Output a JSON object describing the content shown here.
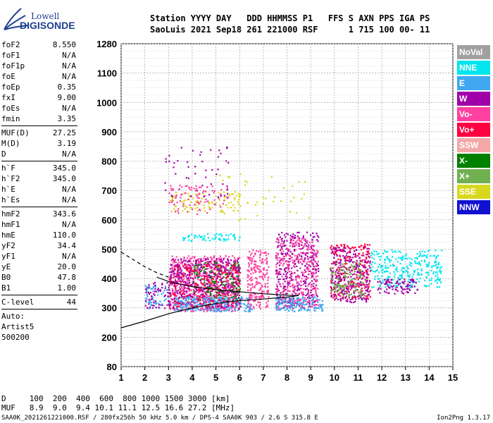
{
  "logo": {
    "line1": "Lowell",
    "line2": "DIGISONDE"
  },
  "header": {
    "line1": "Station YYYY DAY   DDD HHMMSS P1   FFS S AXN PPS IGA PS",
    "line2": "SaoLuis 2021 Sep18 261 221000 RSF      1 715 100 00- 11"
  },
  "params": {
    "group1": [
      {
        "k": "foF2",
        "v": "8.550"
      },
      {
        "k": "foF1",
        "v": "N/A"
      },
      {
        "k": "foF1p",
        "v": "N/A"
      },
      {
        "k": "foE",
        "v": "N/A"
      },
      {
        "k": "foEp",
        "v": "0.35"
      },
      {
        "k": "fxI",
        "v": "9.00"
      },
      {
        "k": "foEs",
        "v": "N/A"
      },
      {
        "k": "fmin",
        "v": "3.35"
      }
    ],
    "group2": [
      {
        "k": "MUF(D)",
        "v": "27.25"
      },
      {
        "k": "M(D)",
        "v": "3.19"
      },
      {
        "k": "D",
        "v": "N/A"
      }
    ],
    "group3": [
      {
        "k": "h`F",
        "v": "345.0"
      },
      {
        "k": "h`F2",
        "v": "345.0"
      },
      {
        "k": "h`E",
        "v": "N/A"
      },
      {
        "k": "h`Es",
        "v": "N/A"
      }
    ],
    "group4": [
      {
        "k": "hmF2",
        "v": "343.6"
      },
      {
        "k": "hmF1",
        "v": "N/A"
      },
      {
        "k": "hmE",
        "v": "110.0"
      },
      {
        "k": "yF2",
        "v": "34.4"
      },
      {
        "k": "yF1",
        "v": "N/A"
      },
      {
        "k": "yE",
        "v": "20.0"
      },
      {
        "k": "B0",
        "v": "47.8"
      },
      {
        "k": "B1",
        "v": "1.00"
      }
    ],
    "group5": [
      {
        "k": "C-level",
        "v": "44"
      }
    ],
    "auto": [
      "Auto:",
      "Artist5",
      "500200"
    ]
  },
  "legend": [
    {
      "label": "NoVal",
      "color": "#a0a0a0"
    },
    {
      "label": "NNE",
      "color": "#00e5ee"
    },
    {
      "label": "E",
      "color": "#40a8f0"
    },
    {
      "label": "W",
      "color": "#a000a8"
    },
    {
      "label": "Vo-",
      "color": "#ff40a0"
    },
    {
      "label": "Vo+",
      "color": "#ff0040"
    },
    {
      "label": "SSW",
      "color": "#f4a8a8"
    },
    {
      "label": "X-",
      "color": "#008000"
    },
    {
      "label": "X+",
      "color": "#70b050"
    },
    {
      "label": "SSE",
      "color": "#d8d820"
    },
    {
      "label": "NNW",
      "color": "#1010d0"
    }
  ],
  "dmuf": {
    "dline": "D     100  200  400  600  800 1000 1500 3000 [km]",
    "mline": "MUF   8.9  9.0  9.4 10.1 11.1 12.5 16.6 27.2 [MHz]"
  },
  "footer": {
    "left": "SAA0K_2021261221000.RSF / 280fx256h 50 kHz 5.0 km / DPS-4 SAA0K 903 / 2.6 S 315.8 E",
    "right": "Ion2Png 1.3.17"
  },
  "chart_data": {
    "type": "scatter",
    "title": "",
    "xlabel": "",
    "ylabel": "",
    "xlim": [
      1,
      15
    ],
    "ylim_ticks": [
      80,
      200,
      300,
      400,
      500,
      600,
      700,
      800,
      900,
      1000,
      1100,
      1280
    ],
    "x_ticks": [
      1,
      2,
      3,
      4,
      5,
      6,
      7,
      8,
      9,
      10,
      11,
      12,
      13,
      14,
      15
    ],
    "grid": true,
    "legend_position": "right",
    "clusters": [
      {
        "color": "#ff40a0",
        "x": [
          3.0,
          6.0
        ],
        "y": [
          290,
          480
        ],
        "n": 700
      },
      {
        "color": "#a000a8",
        "x": [
          3.0,
          6.0
        ],
        "y": [
          300,
          470
        ],
        "n": 500
      },
      {
        "color": "#008000",
        "x": [
          4.0,
          6.0
        ],
        "y": [
          320,
          460
        ],
        "n": 150
      },
      {
        "color": "#40a8f0",
        "x": [
          3.2,
          6.5
        ],
        "y": [
          290,
          340
        ],
        "n": 250
      },
      {
        "color": "#ff0040",
        "x": [
          3.0,
          6.0
        ],
        "y": [
          300,
          450
        ],
        "n": 200
      },
      {
        "color": "#ff40a0",
        "x": [
          6.3,
          7.2
        ],
        "y": [
          300,
          500
        ],
        "n": 220
      },
      {
        "color": "#a000a8",
        "x": [
          7.5,
          9.3
        ],
        "y": [
          300,
          560
        ],
        "n": 380
      },
      {
        "color": "#ff40a0",
        "x": [
          7.5,
          9.3
        ],
        "y": [
          300,
          540
        ],
        "n": 300
      },
      {
        "color": "#40a8f0",
        "x": [
          7.5,
          9.5
        ],
        "y": [
          290,
          340
        ],
        "n": 150
      },
      {
        "color": "#ff0040",
        "x": [
          9.8,
          11.5
        ],
        "y": [
          330,
          520
        ],
        "n": 250
      },
      {
        "color": "#a000a8",
        "x": [
          9.8,
          11.5
        ],
        "y": [
          320,
          510
        ],
        "n": 250
      },
      {
        "color": "#70b050",
        "x": [
          9.8,
          11.3
        ],
        "y": [
          340,
          460
        ],
        "n": 120
      },
      {
        "color": "#00e5ee",
        "x": [
          11.5,
          14.5
        ],
        "y": [
          370,
          500
        ],
        "n": 300
      },
      {
        "color": "#a000a8",
        "x": [
          11.8,
          13.5
        ],
        "y": [
          350,
          400
        ],
        "n": 90
      },
      {
        "color": "#d8d820",
        "x": [
          3.0,
          6.0
        ],
        "y": [
          630,
          700
        ],
        "n": 90
      },
      {
        "color": "#ff40a0",
        "x": [
          3.0,
          5.5
        ],
        "y": [
          620,
          720
        ],
        "n": 90
      },
      {
        "color": "#00e5ee",
        "x": [
          3.5,
          6.0
        ],
        "y": [
          530,
          555
        ],
        "n": 60
      },
      {
        "color": "#a000a8",
        "x": [
          2.8,
          5.5
        ],
        "y": [
          680,
          850
        ],
        "n": 50
      },
      {
        "color": "#d8d820",
        "x": [
          5.0,
          9.0
        ],
        "y": [
          600,
          760
        ],
        "n": 40
      },
      {
        "color": "#40a8f0",
        "x": [
          2.0,
          3.0
        ],
        "y": [
          300,
          380
        ],
        "n": 60
      },
      {
        "color": "#a000a8",
        "x": [
          2.0,
          3.0
        ],
        "y": [
          300,
          390
        ],
        "n": 60
      }
    ],
    "lines": [
      {
        "style": "solid",
        "x": [
          1.0,
          2.0,
          3.0,
          4.0,
          5.0,
          6.0,
          7.0,
          8.0,
          8.5
        ],
        "y": [
          232,
          255,
          280,
          300,
          315,
          325,
          330,
          337,
          342
        ]
      },
      {
        "style": "solid",
        "x": [
          2.5,
          3.0,
          4.0,
          5.0,
          6.0,
          7.0,
          8.0,
          8.5
        ],
        "y": [
          405,
          390,
          372,
          362,
          355,
          348,
          343,
          342
        ]
      },
      {
        "style": "dashed",
        "x": [
          1.0,
          1.5,
          2.0,
          2.5,
          3.0
        ],
        "y": [
          490,
          465,
          440,
          420,
          405
        ]
      }
    ]
  }
}
